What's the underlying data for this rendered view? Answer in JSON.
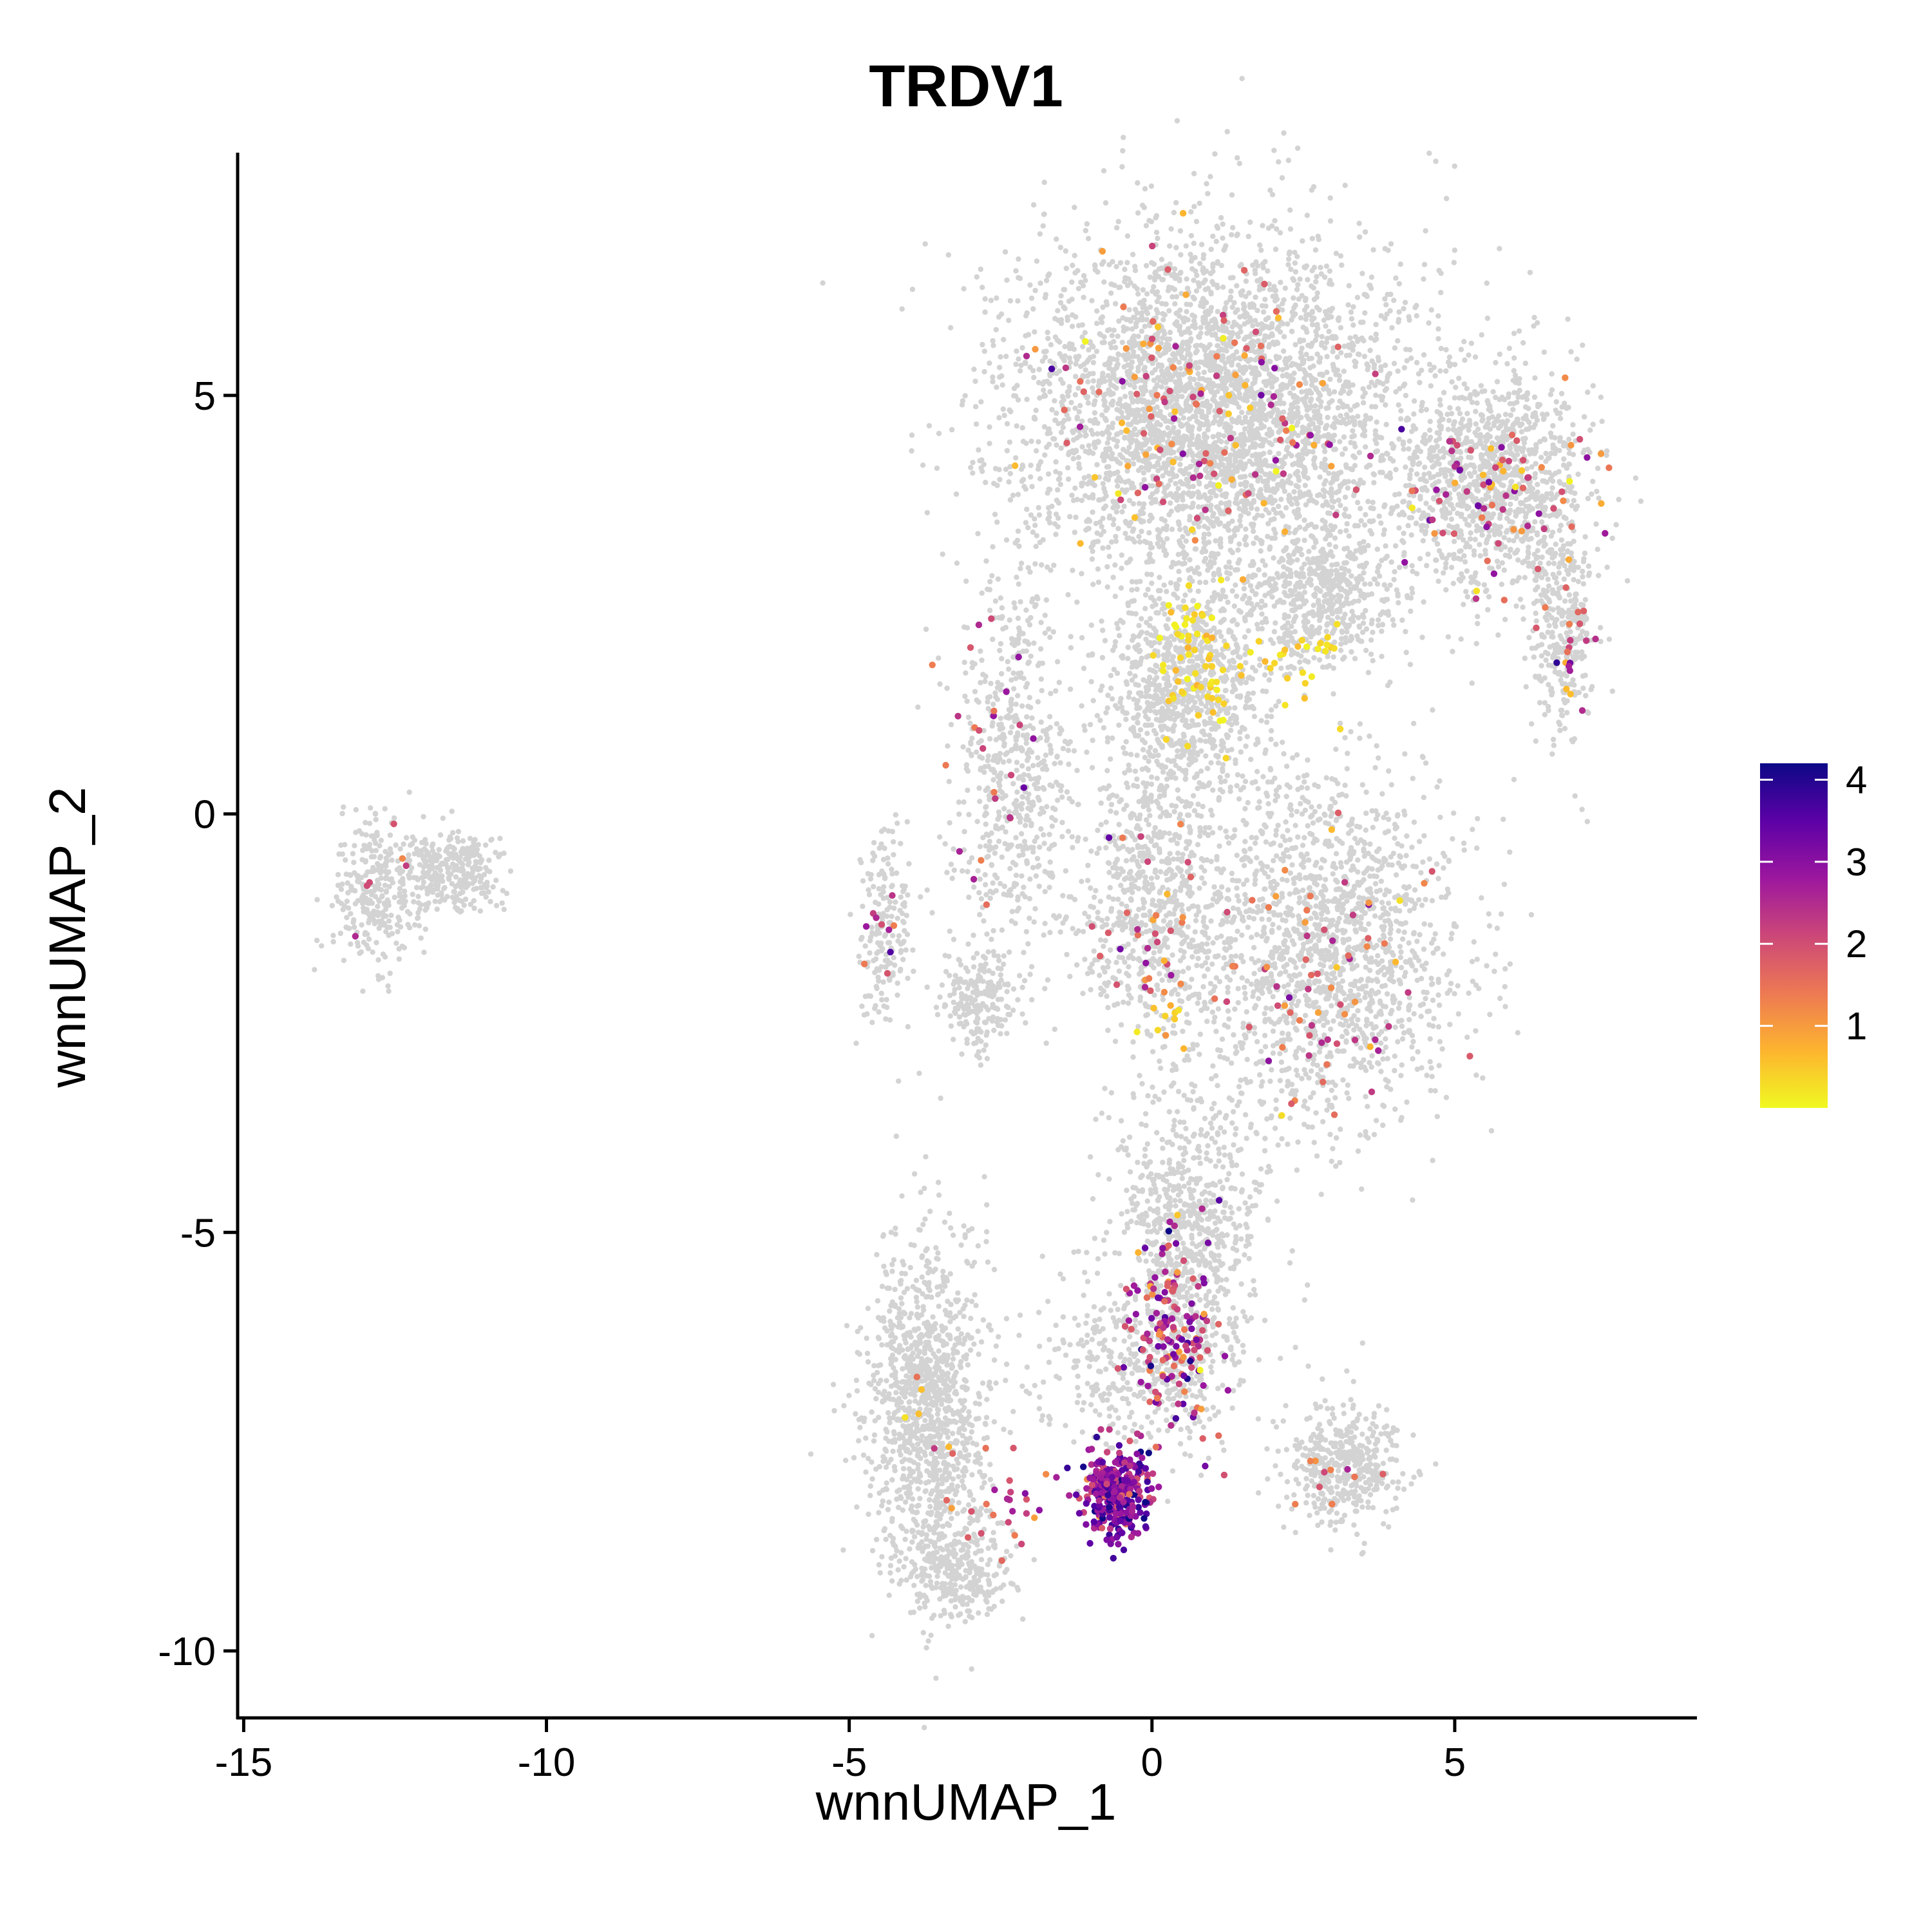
{
  "chart_data": {
    "type": "scatter",
    "title": "TRDV1",
    "xlabel": "wnnUMAP_1",
    "ylabel": "wnnUMAP_2",
    "xlim": [
      -15.1,
      9.0
    ],
    "ylim": [
      -10.8,
      7.9
    ],
    "xticks": [
      -15,
      -10,
      -5,
      0,
      5
    ],
    "xtick_labels": [
      "-15",
      "-10",
      "-5",
      "0",
      "5"
    ],
    "yticks": [
      -10,
      -5,
      0,
      5
    ],
    "ytick_labels": [
      "-10",
      "-5",
      "0",
      "5"
    ],
    "grid": false,
    "background_color": "#d3d3d3",
    "colorbar": {
      "title": "",
      "placement": "right",
      "range": [
        0.0,
        4.2
      ],
      "ticks": [
        1,
        2,
        3,
        4
      ],
      "tick_labels": [
        "1",
        "2",
        "3",
        "4"
      ],
      "colors": [
        "#f0f921",
        "#fdb42f",
        "#ed7953",
        "#cc4778",
        "#9c179e",
        "#5c01a6",
        "#0d0887"
      ]
    },
    "background_clusters": [
      {
        "name": "",
        "cx": 1.0,
        "cy": 4.8,
        "sx": 2.6,
        "sy": 1.7,
        "n": 3800
      },
      {
        "name": "",
        "cx": 5.6,
        "cy": 4.0,
        "sx": 1.3,
        "sy": 1.1,
        "n": 1100
      },
      {
        "name": "",
        "cx": 6.8,
        "cy": 2.2,
        "sx": 0.45,
        "sy": 1.0,
        "n": 300
      },
      {
        "name": "",
        "cx": 2.8,
        "cy": 2.6,
        "sx": 1.0,
        "sy": 0.7,
        "n": 500
      },
      {
        "name": "",
        "cx": 0.5,
        "cy": 1.5,
        "sx": 1.1,
        "sy": 1.1,
        "n": 900
      },
      {
        "name": "",
        "cx": 2.8,
        "cy": -1.6,
        "sx": 1.8,
        "sy": 1.7,
        "n": 1700
      },
      {
        "name": "",
        "cx": 0.0,
        "cy": -1.0,
        "sx": 1.0,
        "sy": 1.4,
        "n": 700
      },
      {
        "name": "",
        "cx": -2.3,
        "cy": 0.5,
        "sx": 0.8,
        "sy": 1.9,
        "n": 600
      },
      {
        "name": "",
        "cx": -4.4,
        "cy": -1.4,
        "sx": 0.35,
        "sy": 0.9,
        "n": 180
      },
      {
        "name": "",
        "cx": -2.9,
        "cy": -2.2,
        "sx": 0.5,
        "sy": 0.5,
        "n": 200
      },
      {
        "name": "",
        "cx": 0.6,
        "cy": -4.8,
        "sx": 0.9,
        "sy": 1.2,
        "n": 700
      },
      {
        "name": "",
        "cx": -3.7,
        "cy": -7.1,
        "sx": 0.8,
        "sy": 1.6,
        "n": 1200
      },
      {
        "name": "",
        "cx": -3.2,
        "cy": -9.0,
        "sx": 0.7,
        "sy": 0.5,
        "n": 300
      },
      {
        "name": "",
        "cx": 3.2,
        "cy": -7.8,
        "sx": 0.8,
        "sy": 0.6,
        "n": 450
      },
      {
        "name": "",
        "cx": -12.8,
        "cy": -0.9,
        "sx": 0.6,
        "sy": 0.7,
        "n": 300
      },
      {
        "name": "",
        "cx": -11.6,
        "cy": -0.7,
        "sx": 0.75,
        "sy": 0.4,
        "n": 300
      },
      {
        "name": "",
        "cx": 0.0,
        "cy": -6.5,
        "sx": 1.4,
        "sy": 0.9,
        "n": 500
      }
    ],
    "expression_points": [
      {
        "x": -0.6,
        "y": -8.1,
        "sx": 0.45,
        "sy": 0.45,
        "n": 330,
        "value_mean": 3.0,
        "value_sd": 0.7
      },
      {
        "x": 0.3,
        "y": -6.2,
        "sx": 0.7,
        "sy": 1.0,
        "n": 160,
        "value_mean": 2.3,
        "value_sd": 0.8
      },
      {
        "x": 0.8,
        "y": 1.8,
        "sx": 0.6,
        "sy": 0.8,
        "n": 70,
        "value_mean": 0.3,
        "value_sd": 0.2
      },
      {
        "x": 2.5,
        "y": 1.8,
        "sx": 0.5,
        "sy": 0.4,
        "n": 25,
        "value_mean": 0.4,
        "value_sd": 0.2
      },
      {
        "x": 0.6,
        "y": 5.0,
        "sx": 2.2,
        "sy": 1.3,
        "n": 140,
        "value_mean": 1.6,
        "value_sd": 0.8
      },
      {
        "x": 5.8,
        "y": 3.8,
        "sx": 1.1,
        "sy": 1.0,
        "n": 80,
        "value_mean": 1.8,
        "value_sd": 0.8
      },
      {
        "x": 6.8,
        "y": 1.8,
        "sx": 0.35,
        "sy": 0.8,
        "n": 20,
        "value_mean": 2.2,
        "value_sd": 0.8
      },
      {
        "x": 3.0,
        "y": -2.0,
        "sx": 1.4,
        "sy": 1.4,
        "n": 70,
        "value_mean": 1.7,
        "value_sd": 0.7
      },
      {
        "x": -0.2,
        "y": -1.4,
        "sx": 0.8,
        "sy": 1.0,
        "n": 35,
        "value_mean": 2.0,
        "value_sd": 1.0
      },
      {
        "x": -2.7,
        "y": 0.8,
        "sx": 0.6,
        "sy": 1.6,
        "n": 25,
        "value_mean": 1.8,
        "value_sd": 0.8
      },
      {
        "x": -4.5,
        "y": -1.2,
        "sx": 0.2,
        "sy": 0.5,
        "n": 10,
        "value_mean": 2.0,
        "value_sd": 0.6
      },
      {
        "x": -2.3,
        "y": -8.3,
        "sx": 0.6,
        "sy": 0.5,
        "n": 25,
        "value_mean": 1.9,
        "value_sd": 0.6
      },
      {
        "x": 0.3,
        "y": -2.4,
        "sx": 0.4,
        "sy": 0.4,
        "n": 10,
        "value_mean": 0.4,
        "value_sd": 0.2
      },
      {
        "x": -12.6,
        "y": -0.7,
        "sx": 0.5,
        "sy": 0.5,
        "n": 6,
        "value_mean": 1.8,
        "value_sd": 0.6
      },
      {
        "x": 2.8,
        "y": -7.9,
        "sx": 0.6,
        "sy": 0.4,
        "n": 10,
        "value_mean": 1.5,
        "value_sd": 0.5
      },
      {
        "x": -3.7,
        "y": -7.0,
        "sx": 0.4,
        "sy": 0.8,
        "n": 8,
        "value_mean": 1.2,
        "value_sd": 0.6
      }
    ]
  }
}
